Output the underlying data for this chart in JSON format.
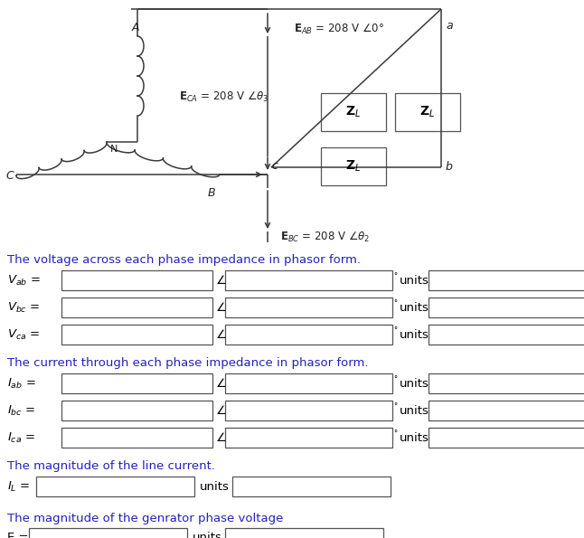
{
  "bg_color": "#ffffff",
  "text_color": "#000000",
  "blue_color": "#2222bb",
  "diagram": {
    "EAB_text": "$\\mathbf{E}_{AB}$ = 208 V $\\angle$0°",
    "ECA_text": "$\\mathbf{E}_{CA}$ = 208 V $\\angle\\theta_3$",
    "EBC_text": "$\\mathbf{E}_{BC}$ = 208 V $\\angle\\theta_2$",
    "ZL_text": "$\\mathbf{Z}_L$"
  },
  "sec1_label": "The voltage across each phase impedance in phasor form.",
  "sec2_label": "The current through each phase impedance in phasor form.",
  "sec3_label": "The magnitude of the line current.",
  "sec4_label": "The magnitude of the genrator phase voltage"
}
